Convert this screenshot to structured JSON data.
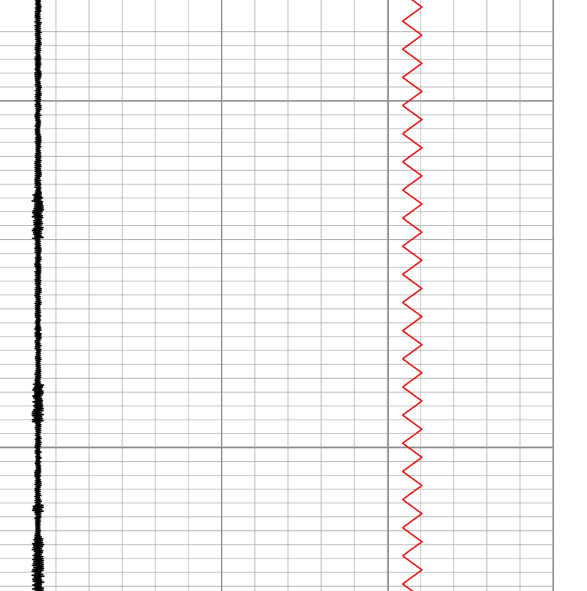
{
  "chart_data": {
    "type": "line",
    "title": "",
    "xlabel": "",
    "ylabel": "",
    "grid": true,
    "legend": "none",
    "series": [
      {
        "color": "#000000",
        "style": "high-frequency noisy trace",
        "amplitude": 1.0,
        "cycles": 300
      },
      {
        "color": "#dd1111",
        "style": "sinusoidal zigzag",
        "amplitude": 1.0,
        "cycles": 21
      }
    ]
  }
}
